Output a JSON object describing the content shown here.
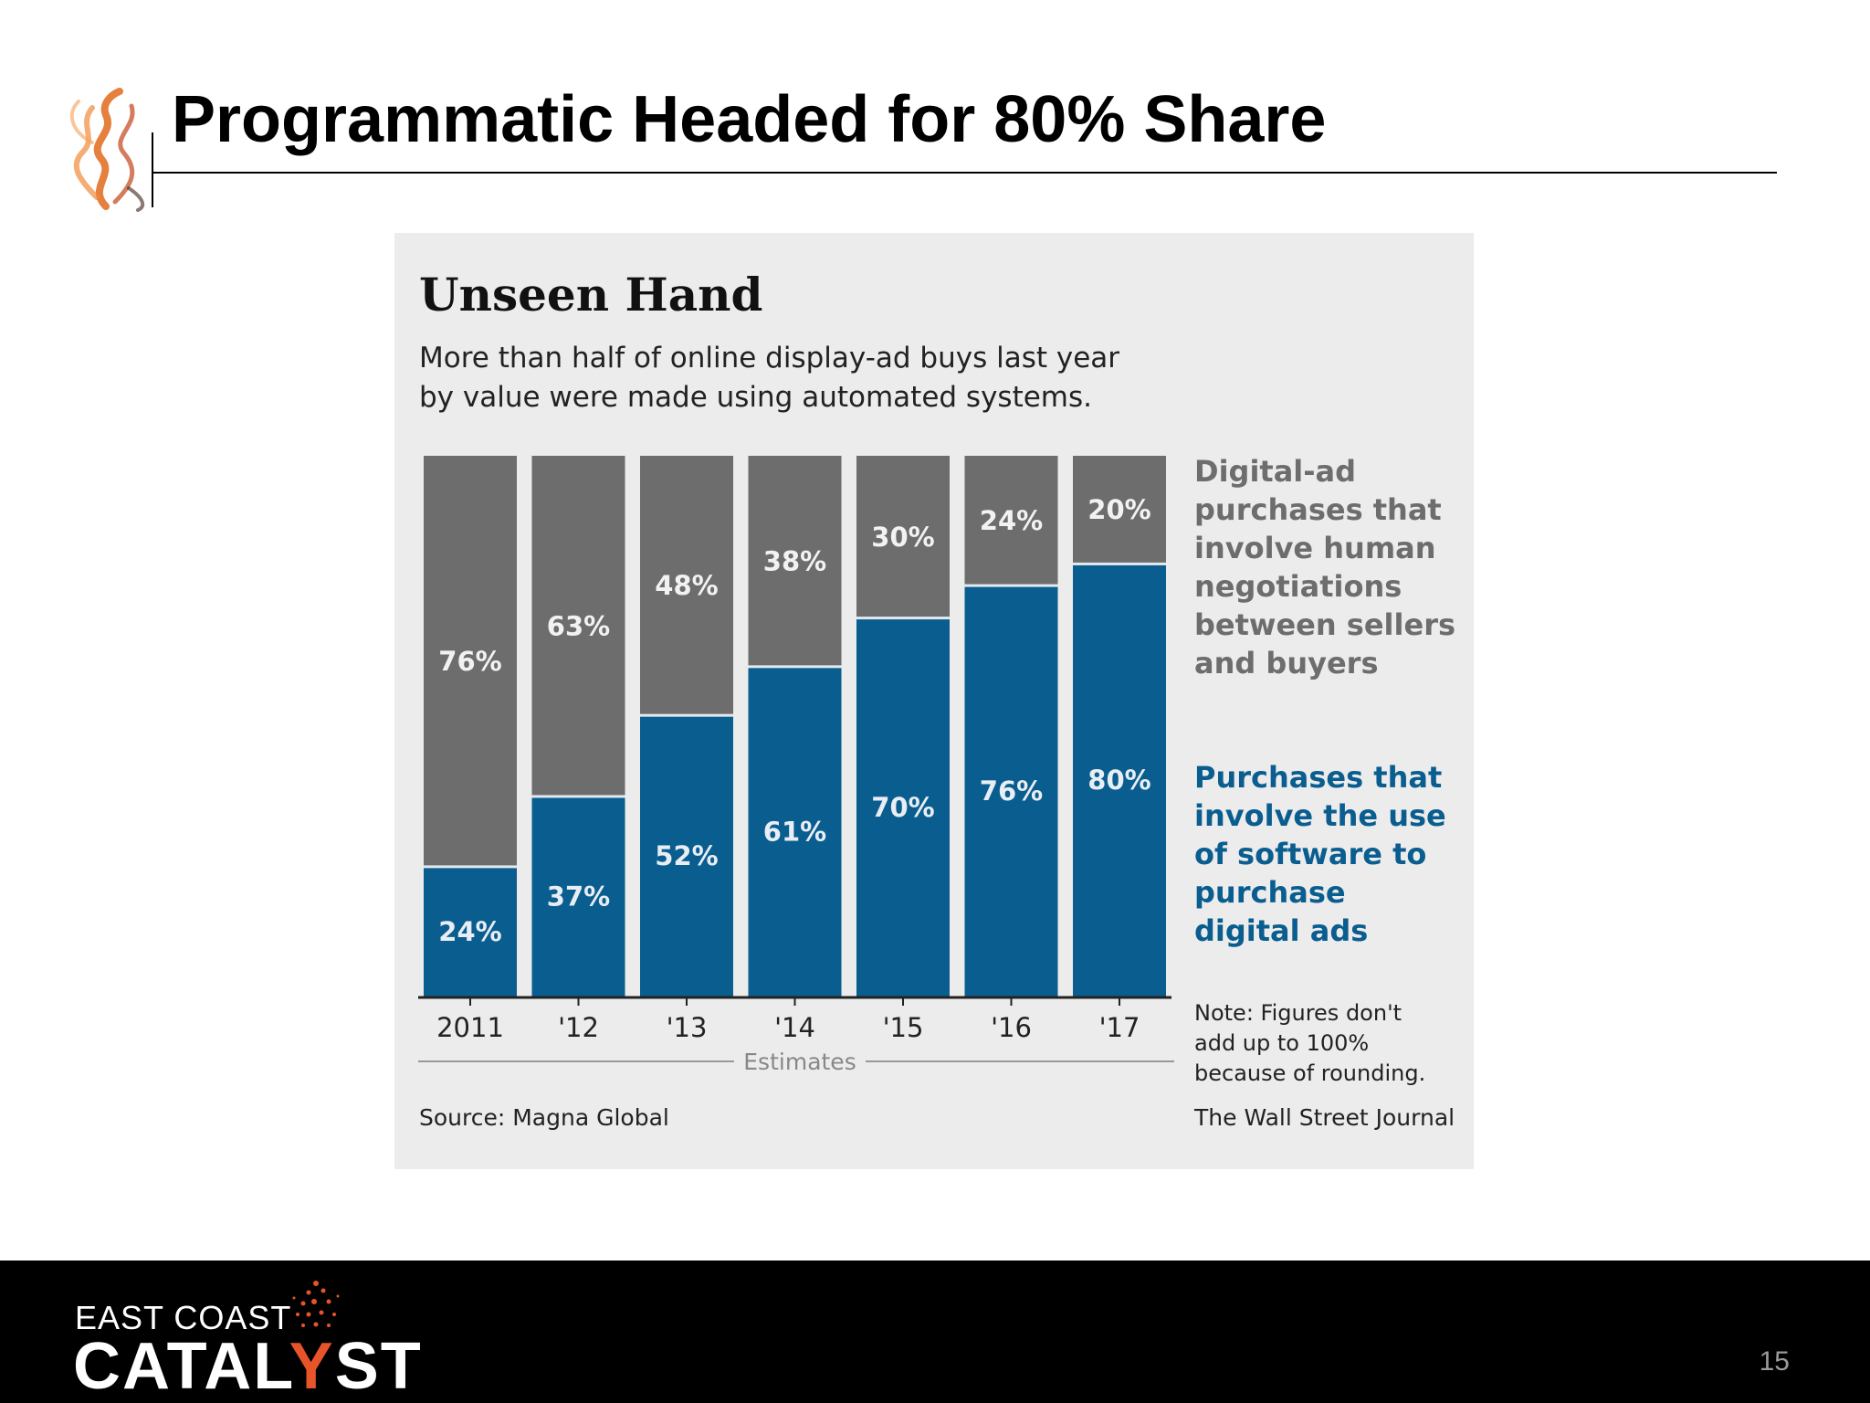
{
  "slide": {
    "title": "Programmatic Headed for 80% Share",
    "page_number": "15"
  },
  "brand": {
    "line1": "EAST COAST",
    "line2_part1": "CATAL",
    "line2_accent": "Y",
    "line2_part2": "ST"
  },
  "chart_data": {
    "type": "bar",
    "stacked": true,
    "title": "Unseen Hand",
    "subtitle_lines": [
      "More than half of online display-ad buys last year",
      "by value were made using automated systems."
    ],
    "categories": [
      "2011",
      "'12",
      "'13",
      "'14",
      "'15",
      "'16",
      "'17"
    ],
    "series": [
      {
        "name": "Purchases that involve the use of software to purchase digital ads",
        "values": [
          24,
          37,
          52,
          61,
          70,
          76,
          80
        ],
        "labels": [
          "24%",
          "37%",
          "52%",
          "61%",
          "70%",
          "76%",
          "80%"
        ],
        "color": "#0a5d8f"
      },
      {
        "name": "Digital-ad purchases that involve human negotiations between sellers and buyers",
        "values": [
          76,
          63,
          48,
          38,
          30,
          24,
          20
        ],
        "labels": [
          "76%",
          "63%",
          "48%",
          "38%",
          "30%",
          "24%",
          "20%"
        ],
        "color": "#6d6d6d"
      }
    ],
    "legend_lines": {
      "human": [
        "Digital-ad",
        "purchases that",
        "involve human",
        "negotiations",
        "between sellers",
        "and buyers"
      ],
      "software": [
        "Purchases that",
        "involve the use",
        "of software to",
        "purchase",
        "digital ads"
      ]
    },
    "estimates_label": "Estimates",
    "note_lines": [
      "Note: Figures don't",
      "add up to 100%",
      "because of rounding."
    ],
    "source": "Source: Magna Global",
    "credit": "The Wall Street Journal",
    "ylim": [
      0,
      100
    ],
    "legend_position": "right"
  }
}
